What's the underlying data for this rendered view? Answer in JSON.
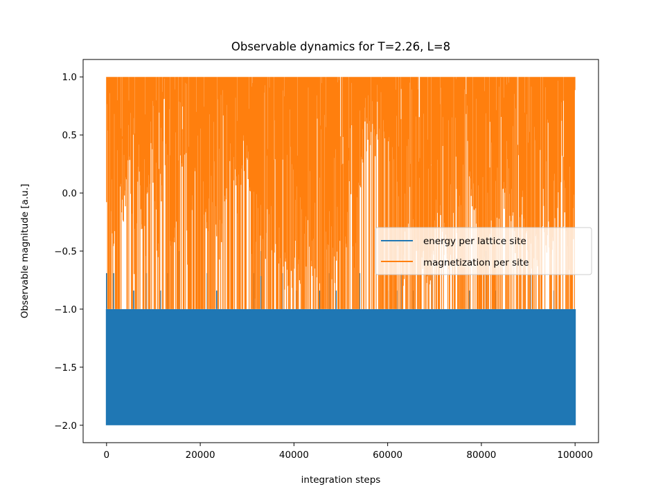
{
  "chart_data": {
    "type": "line",
    "title": "Observable dynamics for T=2.26, L=8",
    "xlabel": "integration steps",
    "ylabel": "Observable magnitude [a.u.]",
    "xlim": [
      -5000,
      105000
    ],
    "ylim": [
      -2.15,
      1.15
    ],
    "xticks": [
      0,
      20000,
      40000,
      60000,
      80000,
      100000
    ],
    "xtick_labels": [
      "0",
      "20000",
      "40000",
      "60000",
      "80000",
      "100000"
    ],
    "yticks": [
      -2.0,
      -1.5,
      -1.0,
      -0.5,
      0.0,
      0.5,
      1.0
    ],
    "ytick_labels": [
      "−2.0",
      "−1.5",
      "−1.0",
      "−0.5",
      "0.0",
      "0.5",
      "1.0"
    ],
    "grid": false,
    "legend_position": "center-right",
    "series": [
      {
        "name": "energy per lattice site",
        "color": "#1f77b4",
        "x_range": [
          0,
          100000
        ],
        "band_min": -2.0,
        "band_max": -1.0,
        "start_value": -0.69,
        "spike_peaks": [
          [
            0,
            -0.69
          ],
          [
            1500,
            -0.69
          ],
          [
            5800,
            -0.84
          ],
          [
            8500,
            -0.69
          ],
          [
            11500,
            -0.84
          ],
          [
            13000,
            -0.69
          ],
          [
            15500,
            -0.5
          ],
          [
            18500,
            -0.69
          ],
          [
            21500,
            -0.69
          ],
          [
            23500,
            -0.84
          ],
          [
            28500,
            -0.84
          ],
          [
            31500,
            -0.69
          ],
          [
            33000,
            -0.5
          ],
          [
            35500,
            -0.5
          ],
          [
            37500,
            -0.69
          ],
          [
            40500,
            -0.84
          ],
          [
            42000,
            -0.69
          ],
          [
            45500,
            -0.84
          ],
          [
            47500,
            -0.69
          ],
          [
            49000,
            -0.84
          ],
          [
            54000,
            -0.69
          ],
          [
            60000,
            -0.84
          ],
          [
            62000,
            -0.84
          ],
          [
            63000,
            -0.69
          ],
          [
            65500,
            -0.84
          ],
          [
            69500,
            -0.69
          ],
          [
            71000,
            -0.84
          ],
          [
            77500,
            -0.84
          ],
          [
            80000,
            -0.69
          ],
          [
            81000,
            -0.5
          ],
          [
            83000,
            -0.84
          ],
          [
            90500,
            -0.69
          ],
          [
            95500,
            -0.84
          ]
        ]
      },
      {
        "name": "magnetization per site",
        "color": "#ff7f0e",
        "x_range": [
          0,
          100000
        ],
        "band_min": -1.0,
        "band_max": 1.0,
        "start_value": 0.31,
        "lower_envelope": [
          [
            0,
            0.3
          ],
          [
            500,
            0.15
          ],
          [
            1500,
            -0.9
          ],
          [
            2500,
            0.0
          ],
          [
            3500,
            -0.4
          ],
          [
            5000,
            0.1
          ],
          [
            6000,
            -1.0
          ],
          [
            7000,
            0.1
          ],
          [
            8000,
            -0.9
          ],
          [
            9500,
            0.3
          ],
          [
            11000,
            -0.7
          ],
          [
            12500,
            0.2
          ],
          [
            14000,
            -0.7
          ],
          [
            16000,
            0.1
          ],
          [
            17500,
            -0.8
          ],
          [
            19500,
            0.2
          ],
          [
            21000,
            -0.5
          ],
          [
            22500,
            -0.3
          ],
          [
            24000,
            -0.7
          ],
          [
            26000,
            0.1
          ],
          [
            28000,
            -0.2
          ],
          [
            30000,
            0.3
          ],
          [
            31500,
            -1.0
          ],
          [
            33000,
            -0.8
          ],
          [
            35000,
            -0.5
          ],
          [
            37000,
            -0.95
          ],
          [
            39000,
            -0.8
          ],
          [
            41000,
            -0.95
          ],
          [
            43000,
            -0.6
          ],
          [
            45000,
            -0.9
          ],
          [
            47000,
            -0.6
          ],
          [
            49000,
            -0.9
          ],
          [
            51000,
            -0.5
          ],
          [
            53000,
            -0.7
          ],
          [
            55000,
            0.4
          ],
          [
            57000,
            0.2
          ],
          [
            59000,
            0.4
          ],
          [
            61000,
            0.1
          ],
          [
            63000,
            -0.9
          ],
          [
            65000,
            -0.4
          ],
          [
            67000,
            -0.9
          ],
          [
            69000,
            -0.8
          ],
          [
            71000,
            -0.2
          ],
          [
            73000,
            -0.9
          ],
          [
            75000,
            -0.3
          ],
          [
            77000,
            0.2
          ],
          [
            79000,
            -0.5
          ],
          [
            81000,
            -0.9
          ],
          [
            83000,
            -0.3
          ],
          [
            85000,
            -0.2
          ],
          [
            87000,
            -0.6
          ],
          [
            89000,
            -0.3
          ],
          [
            91000,
            -0.9
          ],
          [
            93000,
            -0.4
          ],
          [
            95000,
            -0.7
          ],
          [
            97000,
            -0.3
          ],
          [
            99000,
            -0.9
          ],
          [
            100000,
            -0.2
          ]
        ]
      }
    ]
  }
}
